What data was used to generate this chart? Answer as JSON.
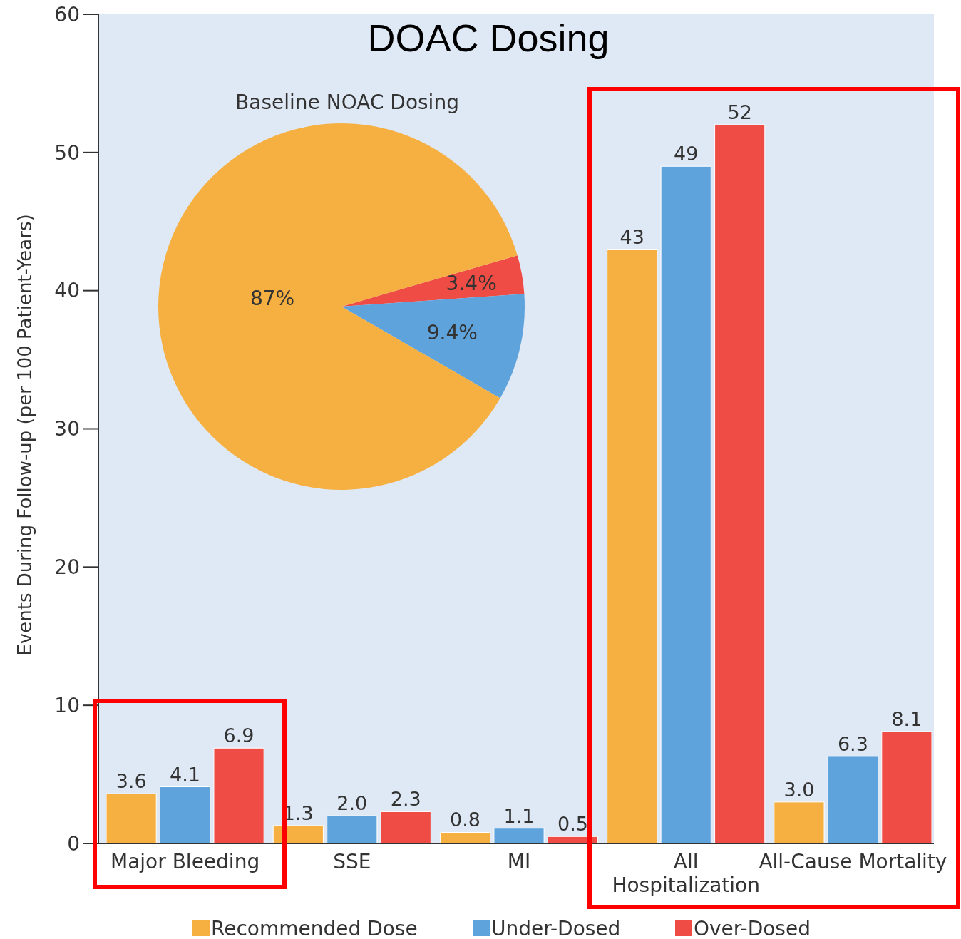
{
  "chart_data": [
    {
      "type": "bar",
      "title": "DOAC Dosing",
      "ylabel": "Events During Follow-up (per 100 Patient-Years)",
      "categories": [
        "Major Bleeding",
        "SSE",
        "MI",
        "All\nHospitalization",
        "All-Cause Mortality"
      ],
      "series": [
        {
          "name": "Recommended Dose",
          "color": "#f5b041",
          "values": [
            3.6,
            1.3,
            0.8,
            43,
            3.0
          ],
          "value_labels": [
            "3.6",
            "1.3",
            "0.8",
            "43",
            "3.0"
          ]
        },
        {
          "name": "Under-Dosed",
          "color": "#5fa3dc",
          "values": [
            4.1,
            2.0,
            1.1,
            49,
            6.3
          ],
          "value_labels": [
            "4.1",
            "2.0",
            "1.1",
            "49",
            "6.3"
          ]
        },
        {
          "name": "Over-Dosed",
          "color": "#ef4c45",
          "values": [
            6.9,
            2.3,
            0.5,
            52,
            8.1
          ],
          "value_labels": [
            "6.9",
            "2.3",
            "0.5",
            "52",
            "8.1"
          ]
        }
      ],
      "ylim": [
        0,
        60
      ],
      "yticks": [
        0,
        10,
        20,
        30,
        40,
        50,
        60
      ],
      "grid": false,
      "legend": "bottom"
    },
    {
      "type": "pie",
      "title": "Baseline NOAC Dosing",
      "categories": [
        null,
        null,
        null
      ],
      "values": [
        3.4,
        9.4,
        87
      ],
      "colors": [
        "#ef4c45",
        "#5fa3dc",
        "#f5b041"
      ],
      "value_labels": [
        "3.4%",
        "9.4%",
        "87%"
      ]
    }
  ]
}
